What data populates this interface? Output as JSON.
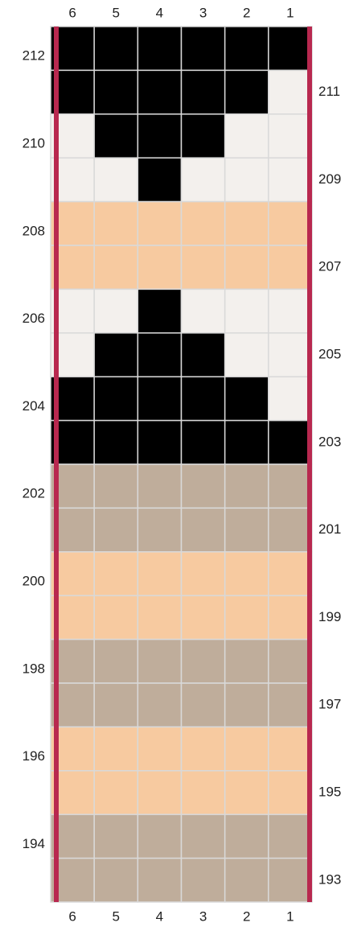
{
  "chart_data": {
    "type": "knitting-grid",
    "columns": [
      "6",
      "5",
      "4",
      "3",
      "2",
      "1"
    ],
    "colors": {
      "K": "#000000",
      "W": "#f3f0ed",
      "P": "#f7caa0",
      "T": "#bfad9b"
    },
    "line_color": "#b8284f",
    "rows": [
      {
        "label": "212",
        "cells": [
          "K",
          "K",
          "K",
          "K",
          "K",
          "K"
        ]
      },
      {
        "label": "211",
        "cells": [
          "K",
          "K",
          "K",
          "K",
          "K",
          "W"
        ]
      },
      {
        "label": "210",
        "cells": [
          "W",
          "K",
          "K",
          "K",
          "W",
          "W"
        ]
      },
      {
        "label": "209",
        "cells": [
          "W",
          "W",
          "K",
          "W",
          "W",
          "W"
        ]
      },
      {
        "label": "208",
        "cells": [
          "P",
          "P",
          "P",
          "P",
          "P",
          "P"
        ]
      },
      {
        "label": "207",
        "cells": [
          "P",
          "P",
          "P",
          "P",
          "P",
          "P"
        ]
      },
      {
        "label": "206",
        "cells": [
          "W",
          "W",
          "K",
          "W",
          "W",
          "W"
        ]
      },
      {
        "label": "205",
        "cells": [
          "W",
          "K",
          "K",
          "K",
          "W",
          "W"
        ]
      },
      {
        "label": "204",
        "cells": [
          "K",
          "K",
          "K",
          "K",
          "K",
          "W"
        ]
      },
      {
        "label": "203",
        "cells": [
          "K",
          "K",
          "K",
          "K",
          "K",
          "K"
        ]
      },
      {
        "label": "202",
        "cells": [
          "T",
          "T",
          "T",
          "T",
          "T",
          "T"
        ]
      },
      {
        "label": "201",
        "cells": [
          "T",
          "T",
          "T",
          "T",
          "T",
          "T"
        ]
      },
      {
        "label": "200",
        "cells": [
          "P",
          "P",
          "P",
          "P",
          "P",
          "P"
        ]
      },
      {
        "label": "199",
        "cells": [
          "P",
          "P",
          "P",
          "P",
          "P",
          "P"
        ]
      },
      {
        "label": "198",
        "cells": [
          "T",
          "T",
          "T",
          "T",
          "T",
          "T"
        ]
      },
      {
        "label": "197",
        "cells": [
          "T",
          "T",
          "T",
          "T",
          "T",
          "T"
        ]
      },
      {
        "label": "196",
        "cells": [
          "P",
          "P",
          "P",
          "P",
          "P",
          "P"
        ]
      },
      {
        "label": "195",
        "cells": [
          "P",
          "P",
          "P",
          "P",
          "P",
          "P"
        ]
      },
      {
        "label": "194",
        "cells": [
          "T",
          "T",
          "T",
          "T",
          "T",
          "T"
        ]
      },
      {
        "label": "193",
        "cells": [
          "T",
          "T",
          "T",
          "T",
          "T",
          "T"
        ]
      }
    ]
  }
}
